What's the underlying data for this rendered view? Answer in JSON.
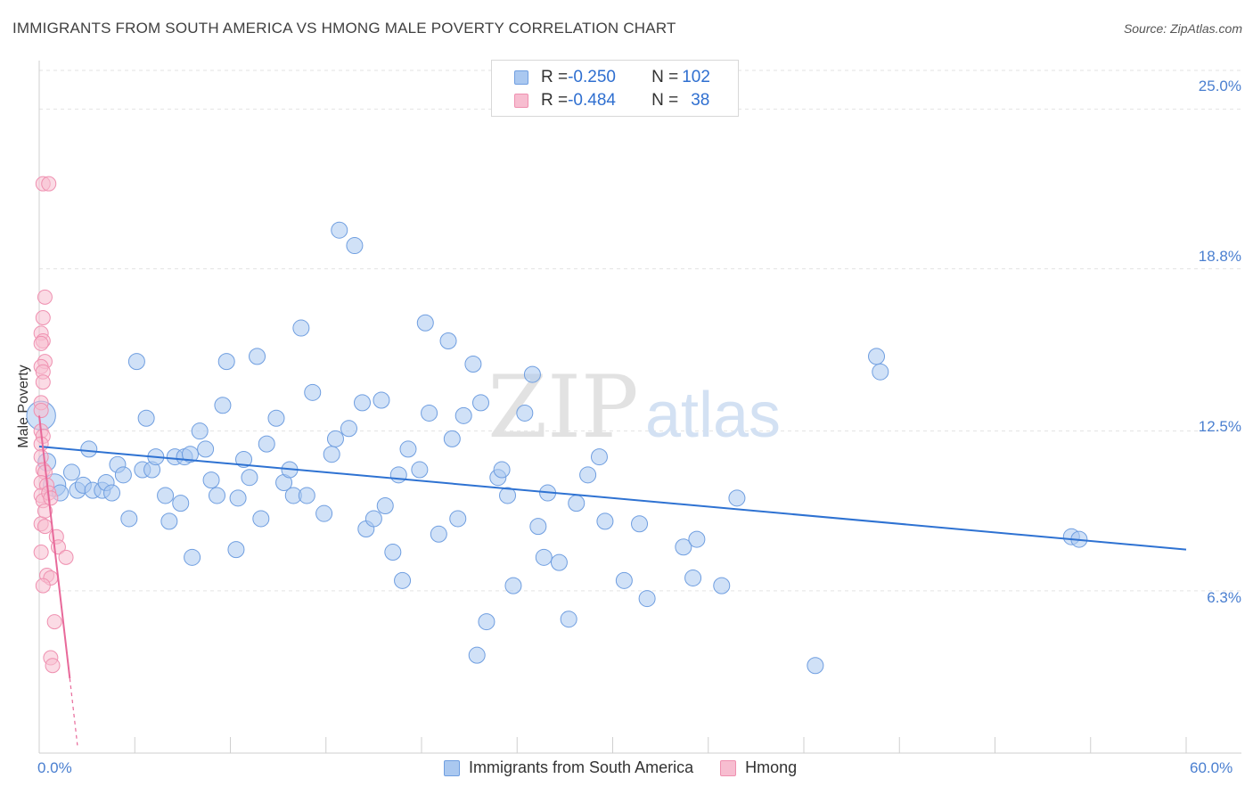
{
  "header": {
    "title": "IMMIGRANTS FROM SOUTH AMERICA VS HMONG MALE POVERTY CORRELATION CHART",
    "source": "Source: ZipAtlas.com"
  },
  "watermark": {
    "zip": "ZIP",
    "atlas": "atlas"
  },
  "legend_top": [
    {
      "r_label": "R = ",
      "r_value": "-0.250",
      "n_label": "N = ",
      "n_value": "102"
    },
    {
      "r_label": "R = ",
      "r_value": "-0.484",
      "n_label": "N = ",
      "n_value": "38"
    }
  ],
  "legend_bottom": [
    {
      "label": "Immigrants from South America"
    },
    {
      "label": "Hmong"
    }
  ],
  "colors": {
    "blue_fill": "#aac8f0",
    "blue_stroke": "#6f9ee0",
    "blue_line": "#2e72d2",
    "pink_fill": "#f7bdd0",
    "pink_stroke": "#ef90b0",
    "pink_line": "#e8699a",
    "grid": "#e3e3e3",
    "axis_text": "#4a7fd0"
  },
  "chart_data": {
    "type": "scatter",
    "title": "IMMIGRANTS FROM SOUTH AMERICA VS HMONG MALE POVERTY CORRELATION CHART",
    "xlabel": "",
    "ylabel": "Male Poverty",
    "xlim": [
      0,
      60
    ],
    "ylim": [
      0,
      26.5
    ],
    "x_tick_labels": [
      "0.0%",
      "60.0%"
    ],
    "y_ticks": [
      6.3,
      12.5,
      18.8,
      25.0
    ],
    "y_tick_labels": [
      "6.3%",
      "12.5%",
      "18.8%",
      "25.0%"
    ],
    "grid": true,
    "series": [
      {
        "name": "Immigrants from South America",
        "r": -0.25,
        "n": 102,
        "trend": {
          "x0": 0,
          "y0": 11.9,
          "x1": 60,
          "y1": 7.9
        },
        "points": [
          [
            0.1,
            13.1,
            1.8
          ],
          [
            0.4,
            11.3,
            1.1
          ],
          [
            0.8,
            10.4,
            1.4
          ],
          [
            1.1,
            10.1,
            1.0
          ],
          [
            1.7,
            10.9,
            1.0
          ],
          [
            2.0,
            10.2,
            1.0
          ],
          [
            2.3,
            10.4,
            1.0
          ],
          [
            2.6,
            11.8,
            1.0
          ],
          [
            2.8,
            10.2,
            1.0
          ],
          [
            3.3,
            10.2,
            1.0
          ],
          [
            3.5,
            10.5,
            1.0
          ],
          [
            3.8,
            10.1,
            1.0
          ],
          [
            4.1,
            11.2,
            1.0
          ],
          [
            4.4,
            10.8,
            1.0
          ],
          [
            4.7,
            9.1,
            1.0
          ],
          [
            5.1,
            15.2,
            1.0
          ],
          [
            5.4,
            11.0,
            1.0
          ],
          [
            5.6,
            13.0,
            1.0
          ],
          [
            5.9,
            11.0,
            1.0
          ],
          [
            6.1,
            11.5,
            1.0
          ],
          [
            6.6,
            10.0,
            1.0
          ],
          [
            6.8,
            9.0,
            1.0
          ],
          [
            7.1,
            11.5,
            1.0
          ],
          [
            7.4,
            9.7,
            1.0
          ],
          [
            7.6,
            11.5,
            1.0
          ],
          [
            7.9,
            11.6,
            1.0
          ],
          [
            8.0,
            7.6,
            1.0
          ],
          [
            8.4,
            12.5,
            1.0
          ],
          [
            8.7,
            11.8,
            1.0
          ],
          [
            9.0,
            10.6,
            1.0
          ],
          [
            9.3,
            10.0,
            1.0
          ],
          [
            9.6,
            13.5,
            1.0
          ],
          [
            9.8,
            15.2,
            1.0
          ],
          [
            10.3,
            7.9,
            1.0
          ],
          [
            10.4,
            9.9,
            1.0
          ],
          [
            10.7,
            11.4,
            1.0
          ],
          [
            11.0,
            10.7,
            1.0
          ],
          [
            11.4,
            15.4,
            1.0
          ],
          [
            11.6,
            9.1,
            1.0
          ],
          [
            11.9,
            12.0,
            1.0
          ],
          [
            12.4,
            13.0,
            1.0
          ],
          [
            12.8,
            10.5,
            1.0
          ],
          [
            13.1,
            11.0,
            1.0
          ],
          [
            13.3,
            10.0,
            1.0
          ],
          [
            13.7,
            16.5,
            1.0
          ],
          [
            14.0,
            10.0,
            1.0
          ],
          [
            14.3,
            14.0,
            1.0
          ],
          [
            14.9,
            9.3,
            1.0
          ],
          [
            15.3,
            11.6,
            1.0
          ],
          [
            15.5,
            12.2,
            1.0
          ],
          [
            15.7,
            20.3,
            1.0
          ],
          [
            16.2,
            12.6,
            1.0
          ],
          [
            16.5,
            19.7,
            1.0
          ],
          [
            16.9,
            13.6,
            1.0
          ],
          [
            17.1,
            8.7,
            1.0
          ],
          [
            17.5,
            9.1,
            1.0
          ],
          [
            17.9,
            13.7,
            1.0
          ],
          [
            18.1,
            9.6,
            1.0
          ],
          [
            18.5,
            7.8,
            1.0
          ],
          [
            18.8,
            10.8,
            1.0
          ],
          [
            19.0,
            6.7,
            1.0
          ],
          [
            19.3,
            11.8,
            1.0
          ],
          [
            19.9,
            11.0,
            1.0
          ],
          [
            20.2,
            16.7,
            1.0
          ],
          [
            20.4,
            13.2,
            1.0
          ],
          [
            20.9,
            8.5,
            1.0
          ],
          [
            21.4,
            16.0,
            1.0
          ],
          [
            21.6,
            12.2,
            1.0
          ],
          [
            21.9,
            9.1,
            1.0
          ],
          [
            22.2,
            13.1,
            1.0
          ],
          [
            22.7,
            15.1,
            1.0
          ],
          [
            22.9,
            3.8,
            1.0
          ],
          [
            23.1,
            13.6,
            1.0
          ],
          [
            23.4,
            5.1,
            1.0
          ],
          [
            24.0,
            10.7,
            1.0
          ],
          [
            24.2,
            11.0,
            1.0
          ],
          [
            24.5,
            10.0,
            1.0
          ],
          [
            24.8,
            6.5,
            1.0
          ],
          [
            25.4,
            13.2,
            1.0
          ],
          [
            25.8,
            14.7,
            1.0
          ],
          [
            26.1,
            8.8,
            1.0
          ],
          [
            26.4,
            7.6,
            1.0
          ],
          [
            26.6,
            10.1,
            1.0
          ],
          [
            27.2,
            7.4,
            1.0
          ],
          [
            27.7,
            5.2,
            1.0
          ],
          [
            28.1,
            9.7,
            1.0
          ],
          [
            28.7,
            10.8,
            1.0
          ],
          [
            29.3,
            11.5,
            1.0
          ],
          [
            29.6,
            9.0,
            1.0
          ],
          [
            30.6,
            6.7,
            1.0
          ],
          [
            31.4,
            8.9,
            1.0
          ],
          [
            31.8,
            6.0,
            1.0
          ],
          [
            33.7,
            8.0,
            1.0
          ],
          [
            34.2,
            6.8,
            1.0
          ],
          [
            34.4,
            8.3,
            1.0
          ],
          [
            35.7,
            6.5,
            1.0
          ],
          [
            36.5,
            9.9,
            1.0
          ],
          [
            40.6,
            3.4,
            1.0
          ],
          [
            43.8,
            15.4,
            1.0
          ],
          [
            44.0,
            14.8,
            1.0
          ],
          [
            54.0,
            8.4,
            1.0
          ],
          [
            54.4,
            8.3,
            1.0
          ]
        ]
      },
      {
        "name": "Hmong",
        "r": -0.484,
        "n": 38,
        "trend": {
          "x0": 0,
          "y0": 13.1,
          "x1": 1.6,
          "y1": 2.9
        },
        "trend_extension": {
          "x0": 1.6,
          "y0": 2.9,
          "x1": 2.0,
          "y1": 0.3
        },
        "points": [
          [
            0.2,
            22.1
          ],
          [
            0.5,
            22.1
          ],
          [
            0.3,
            17.7
          ],
          [
            0.2,
            16.9
          ],
          [
            0.1,
            16.3
          ],
          [
            0.2,
            16.0
          ],
          [
            0.1,
            15.9
          ],
          [
            0.3,
            15.2
          ],
          [
            0.1,
            15.0
          ],
          [
            0.2,
            14.8
          ],
          [
            0.2,
            14.4
          ],
          [
            0.1,
            13.6
          ],
          [
            0.1,
            13.3
          ],
          [
            0.1,
            12.5
          ],
          [
            0.2,
            12.3
          ],
          [
            0.1,
            12.0
          ],
          [
            0.1,
            11.5
          ],
          [
            0.2,
            11.0
          ],
          [
            0.3,
            10.9
          ],
          [
            0.1,
            10.5
          ],
          [
            0.4,
            10.4
          ],
          [
            0.1,
            10.0
          ],
          [
            0.2,
            9.8
          ],
          [
            0.5,
            10.1
          ],
          [
            0.6,
            9.9
          ],
          [
            0.1,
            8.9
          ],
          [
            0.3,
            8.8
          ],
          [
            0.9,
            8.4
          ],
          [
            1.0,
            8.0
          ],
          [
            0.1,
            7.8
          ],
          [
            1.4,
            7.6
          ],
          [
            0.4,
            6.9
          ],
          [
            0.6,
            6.8
          ],
          [
            0.2,
            6.5
          ],
          [
            0.8,
            5.1
          ],
          [
            0.6,
            3.7
          ],
          [
            0.7,
            3.4
          ],
          [
            0.3,
            9.4
          ]
        ]
      }
    ]
  }
}
